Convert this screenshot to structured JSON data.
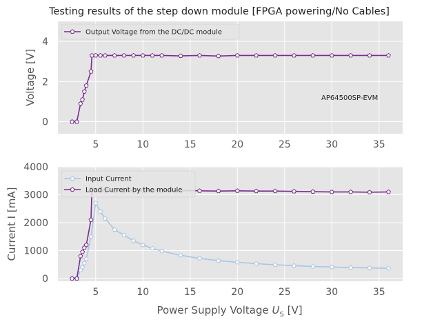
{
  "figure": {
    "title": "Testing results of the step down module [FPGA powering/No Cables]",
    "xlabel_main": "Power Supply Voltage ",
    "xlabel_sub": "S",
    "xlabel_italic": "U",
    "xlabel_unit": " [V]"
  },
  "colors": {
    "purple": "#7b2c8e",
    "lightblue": "#a9c6e3",
    "background": "#e5e5e5"
  },
  "chart_data": [
    {
      "type": "line",
      "ylabel": "Voltage [V]",
      "xlim": [
        1,
        37.5
      ],
      "ylim": [
        -0.6,
        5.0
      ],
      "xticks": [
        5,
        10,
        15,
        20,
        25,
        30,
        35
      ],
      "yticks": [
        0,
        2,
        4
      ],
      "grid": true,
      "legend_position": "top-left",
      "annotation": "AP64500SP-EVM",
      "series": [
        {
          "name": "Output Voltage from the DC/DC module",
          "color": "#7b2c8e",
          "marker": "pentagon",
          "x": [
            2.5,
            3.0,
            3.4,
            3.6,
            3.8,
            4.0,
            4.5,
            4.6,
            5.0,
            5.5,
            6.0,
            7.0,
            8.0,
            9.0,
            10.0,
            11.0,
            12.0,
            14.0,
            16.0,
            18.0,
            20.0,
            22.0,
            24.0,
            26.0,
            28.0,
            30.0,
            32.0,
            34.0,
            36.0
          ],
          "y": [
            0.0,
            0.0,
            0.9,
            1.1,
            1.5,
            1.8,
            2.5,
            3.3,
            3.3,
            3.3,
            3.3,
            3.3,
            3.3,
            3.3,
            3.3,
            3.3,
            3.3,
            3.28,
            3.3,
            3.27,
            3.3,
            3.3,
            3.3,
            3.3,
            3.3,
            3.3,
            3.3,
            3.3,
            3.3
          ]
        }
      ]
    },
    {
      "type": "line",
      "ylabel": "Current I [mA]",
      "xlim": [
        1,
        37.5
      ],
      "ylim": [
        -100,
        4000
      ],
      "xticks": [
        5,
        10,
        15,
        20,
        25,
        30,
        35
      ],
      "yticks": [
        0,
        1000,
        2000,
        3000,
        4000
      ],
      "grid": true,
      "legend_position": "top-left",
      "series": [
        {
          "name": "Input Current",
          "color": "#a9c6e3",
          "marker": "pentagon",
          "x": [
            2.5,
            3.0,
            3.4,
            3.6,
            3.8,
            4.0,
            4.5,
            5.0,
            5.5,
            6.0,
            7.0,
            8.0,
            9.0,
            10.0,
            11.0,
            12.0,
            14.0,
            16.0,
            18.0,
            20.0,
            22.0,
            24.0,
            26.0,
            28.0,
            30.0,
            32.0,
            34.0,
            36.0
          ],
          "y": [
            0,
            0,
            300,
            400,
            550,
            700,
            1500,
            2700,
            2400,
            2150,
            1750,
            1550,
            1350,
            1200,
            1080,
            980,
            830,
            720,
            640,
            580,
            530,
            490,
            460,
            430,
            410,
            390,
            380,
            360
          ]
        },
        {
          "name": "Load Current by the module",
          "color": "#7b2c8e",
          "marker": "pentagon",
          "x": [
            2.5,
            3.0,
            3.4,
            3.6,
            3.8,
            4.0,
            4.5,
            4.6,
            5.0,
            5.5,
            6.0,
            7.0,
            8.0,
            9.0,
            10.0,
            11.0,
            12.0,
            14.0,
            16.0,
            18.0,
            20.0,
            22.0,
            24.0,
            26.0,
            28.0,
            30.0,
            32.0,
            34.0,
            36.0
          ],
          "y": [
            0,
            0,
            800,
            950,
            1100,
            1200,
            2100,
            3200,
            3150,
            3150,
            3150,
            3150,
            3150,
            3150,
            3150,
            3150,
            3150,
            3150,
            3140,
            3130,
            3140,
            3130,
            3130,
            3120,
            3110,
            3100,
            3100,
            3090,
            3100
          ]
        }
      ]
    }
  ]
}
